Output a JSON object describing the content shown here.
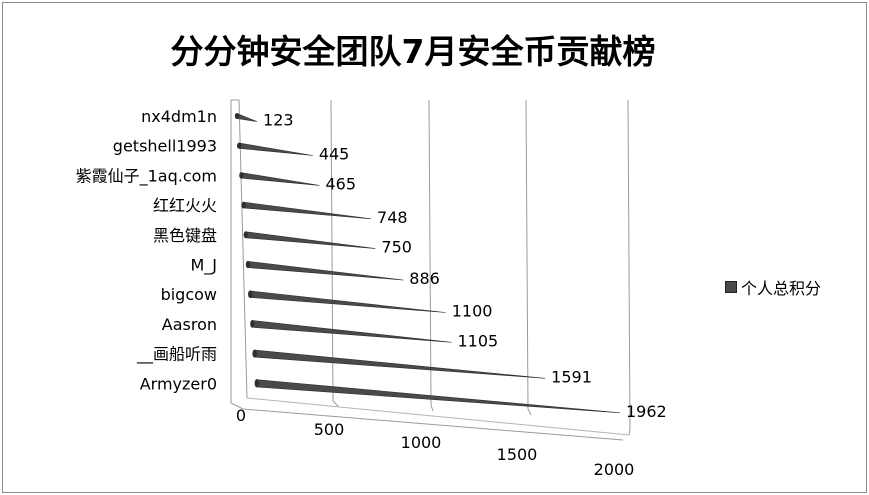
{
  "chart_data": {
    "type": "bar",
    "orientation": "horizontal",
    "title": "分分钟安全团队7月安全币贡献榜",
    "categories": [
      "nx4dm1n",
      "getshell1993",
      "紫霞仙子_1aq.com",
      "红红火火",
      "黑色键盘",
      "M_J",
      "bigcow",
      "Aasron",
      "__画船听雨",
      "Armyzer0"
    ],
    "series": [
      {
        "name": "个人总积分",
        "values": [
          123,
          445,
          465,
          748,
          750,
          886,
          1100,
          1105,
          1591,
          1962
        ]
      }
    ],
    "x_ticks": [
      "0",
      "500",
      "1000",
      "1500",
      "2000"
    ],
    "xlim": [
      0,
      2000
    ],
    "grid": true,
    "legend_position": "right",
    "bar_color": "#4a4a4a"
  }
}
